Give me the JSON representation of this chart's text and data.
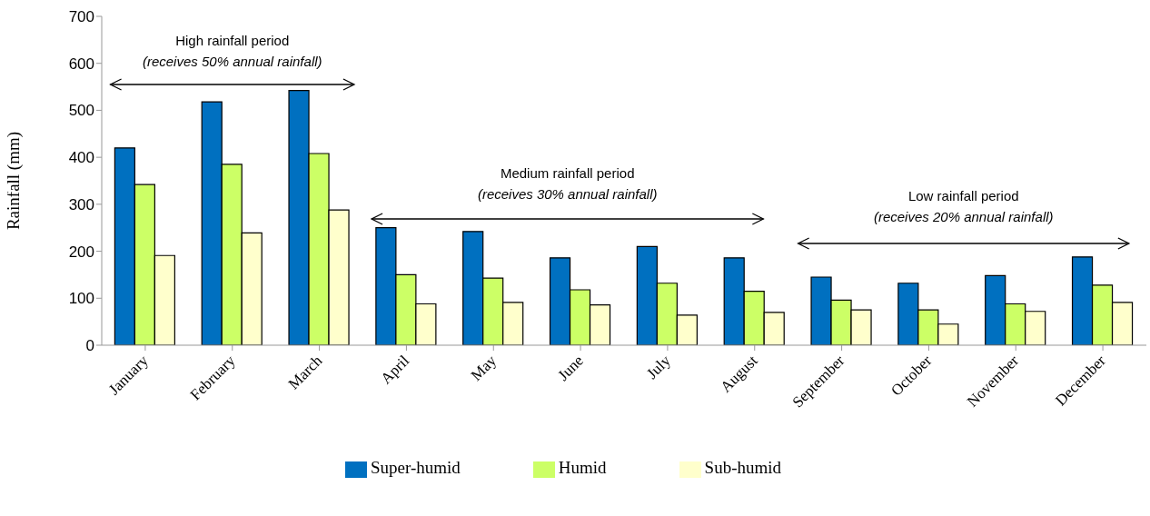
{
  "chart_data": {
    "type": "bar",
    "ylabel": "Rainfall (mm)",
    "ylim": [
      0,
      700
    ],
    "yticks": [
      0,
      100,
      200,
      300,
      400,
      500,
      600,
      700
    ],
    "legend": "bottom",
    "categories": [
      "January",
      "February",
      "March",
      "April",
      "May",
      "June",
      "July",
      "August",
      "September",
      "October",
      "November",
      "December"
    ],
    "series": [
      {
        "name": "Super-humid",
        "color": "#0070c0",
        "values": [
          420,
          518,
          542,
          250,
          242,
          186,
          210,
          186,
          145,
          132,
          148,
          188
        ]
      },
      {
        "name": "Humid",
        "color": "#ccff66",
        "values": [
          342,
          385,
          408,
          150,
          143,
          118,
          132,
          115,
          96,
          75,
          88,
          128
        ]
      },
      {
        "name": "Sub-humid",
        "color": "#ffffcc",
        "values": [
          191,
          239,
          288,
          88,
          91,
          86,
          64,
          70,
          75,
          45,
          72,
          91
        ]
      }
    ],
    "annotations": [
      "High rainfall period",
      "(receives 50% annual rainfall)",
      "Medium rainfall period",
      "(receives 30% annual rainfall)",
      "Low rainfall period",
      "(receives 20% annual rainfall)"
    ]
  }
}
